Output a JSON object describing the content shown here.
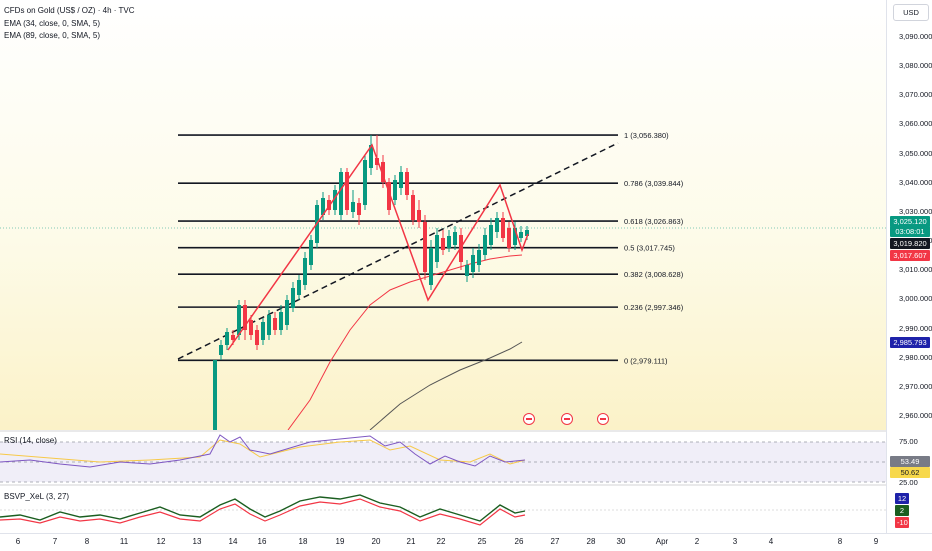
{
  "legend": {
    "title": "CFDs on Gold (US$ / OZ) · 4h · TVC",
    "ema1": "EMA (34, close, 0, SMA, 5)",
    "ema2": "EMA (89, close, 0, SMA, 5)"
  },
  "currency_button": "USD",
  "price_axis": {
    "ticks": [
      "3,090.000",
      "3,080.000",
      "3,070.000",
      "3,060.000",
      "3,050.000",
      "3,040.000",
      "3,030.000",
      "3,020.000",
      "3,010.000",
      "3,000.000",
      "2,990.000",
      "2,980.000",
      "2,970.000",
      "2,960.000"
    ],
    "badges": {
      "last_price": "3,025.120",
      "countdown": "03:08:01",
      "ema_fast": "3,019.820",
      "ema_mid": "3,017.607",
      "ema_slow": "2,985.793"
    }
  },
  "fib_levels": [
    {
      "label": "1 (3,056.380)",
      "value": 3056.38
    },
    {
      "label": "0.786 (3,039.844)",
      "value": 3039.844
    },
    {
      "label": "0.618 (3,026.863)",
      "value": 3026.863
    },
    {
      "label": "0.5 (3,017.745)",
      "value": 3017.745
    },
    {
      "label": "0.382 (3,008.628)",
      "value": 3008.628
    },
    {
      "label": "0.236 (2,997.346)",
      "value": 2997.346
    },
    {
      "label": "0 (2,979.111)",
      "value": 2979.111
    }
  ],
  "rsi": {
    "label": "RSI (14, close)",
    "ticks": [
      "75.00",
      "25.00"
    ],
    "value_badge": "53.49",
    "ma_badge": "50.62"
  },
  "bsvp": {
    "label": "BSVP_XeL (3, 27)",
    "badges": [
      "12",
      "2",
      "-10"
    ]
  },
  "time_axis": [
    "6",
    "7",
    "8",
    "11",
    "12",
    "13",
    "14",
    "16",
    "18",
    "19",
    "20",
    "21",
    "22",
    "25",
    "26",
    "27",
    "28",
    "30",
    "Apr",
    "2",
    "3",
    "4",
    "8",
    "9"
  ],
  "colors": {
    "bull": "#089981",
    "bear": "#f23645",
    "ema_fast": "#f23645",
    "ema_slow": "#555555",
    "pattern": "#f23645",
    "blue_badge": "#1e22aa"
  }
}
